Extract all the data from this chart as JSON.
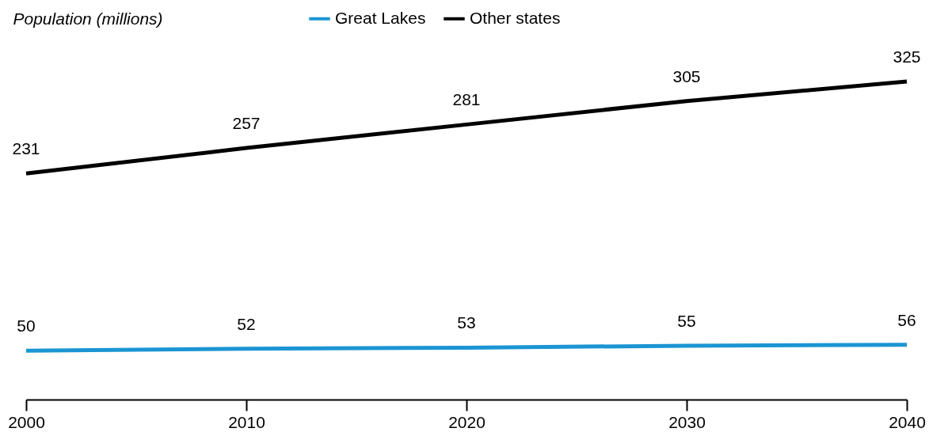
{
  "chart_data": {
    "type": "line",
    "ylabel": "Population (millions)",
    "x": [
      2000,
      2010,
      2020,
      2030,
      2040
    ],
    "xlim": [
      2000,
      2040
    ],
    "xticks": [
      2000,
      2010,
      2020,
      2030,
      2040
    ],
    "series": [
      {
        "name": "Great Lakes",
        "color": "#1b95d3",
        "values": [
          50,
          52,
          53,
          55,
          56
        ]
      },
      {
        "name": "Other states",
        "color": "#000000",
        "values": [
          231,
          257,
          281,
          305,
          325
        ]
      }
    ],
    "data_labels": true,
    "legend": "top",
    "grid": false,
    "marker": "none",
    "line_style": "solid"
  }
}
